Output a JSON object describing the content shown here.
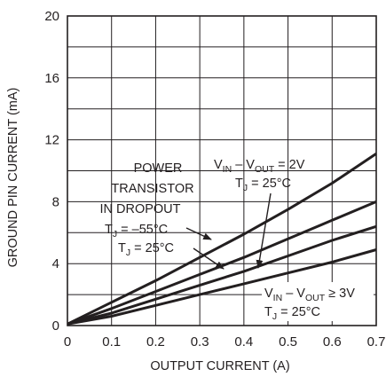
{
  "chart_data": {
    "type": "line",
    "title": "",
    "xlabel": "OUTPUT CURRENT (A)",
    "ylabel": "GROUND PIN CURRENT (mA)",
    "xlim": [
      0,
      0.7
    ],
    "ylim": [
      0,
      20
    ],
    "xticks": [
      "0",
      "0.1",
      "0.2",
      "0.3",
      "0.4",
      "0.5",
      "0.6",
      "0.7"
    ],
    "yticks": [
      "0",
      "4",
      "8",
      "12",
      "16",
      "20"
    ],
    "grid": true,
    "series": [
      {
        "x": [
          0,
          0.1,
          0.2,
          0.3,
          0.4,
          0.5,
          0.6,
          0.7
        ],
        "y": [
          0.1,
          1.5,
          2.9,
          4.4,
          5.9,
          7.5,
          9.2,
          11.1
        ]
      },
      {
        "x": [
          0,
          0.1,
          0.2,
          0.3,
          0.4,
          0.5,
          0.6,
          0.7
        ],
        "y": [
          0.1,
          1.1,
          2.2,
          3.3,
          4.4,
          5.6,
          6.8,
          8.0
        ]
      },
      {
        "x": [
          0,
          0.1,
          0.2,
          0.3,
          0.4,
          0.5,
          0.6,
          0.7
        ],
        "y": [
          0.1,
          0.8,
          1.7,
          2.6,
          3.5,
          4.5,
          5.5,
          6.4
        ]
      },
      {
        "x": [
          0,
          0.1,
          0.2,
          0.3,
          0.4,
          0.5,
          0.6,
          0.7
        ],
        "y": [
          0.1,
          0.6,
          1.3,
          2.0,
          2.7,
          3.4,
          4.1,
          4.9
        ]
      }
    ],
    "annotations": {
      "power_line1": "POWER",
      "power_line2": "TRANSISTOR",
      "power_line3": "IN DROPOUT",
      "tj_minus55": "T",
      "tj_minus55_sub": "J",
      "tj_minus55_rest": " = –55°C",
      "tj_25a": "T",
      "tj_25a_sub": "J",
      "tj_25a_rest": " = 25°C",
      "top_v": "V",
      "top_v_sub1": "IN",
      "top_mid": " – V",
      "top_v_sub2": "OUT",
      "top_rest": " = 2V",
      "top_t": "T",
      "top_t_sub": "J",
      "top_t_rest": " = 25°C",
      "bot_v": "V",
      "bot_v_sub1": "IN",
      "bot_mid": " – V",
      "bot_v_sub2": "OUT",
      "bot_rest": " ≥ 3V",
      "bot_t": "T",
      "bot_t_sub": "J",
      "bot_t_rest": " = 25°C"
    }
  }
}
